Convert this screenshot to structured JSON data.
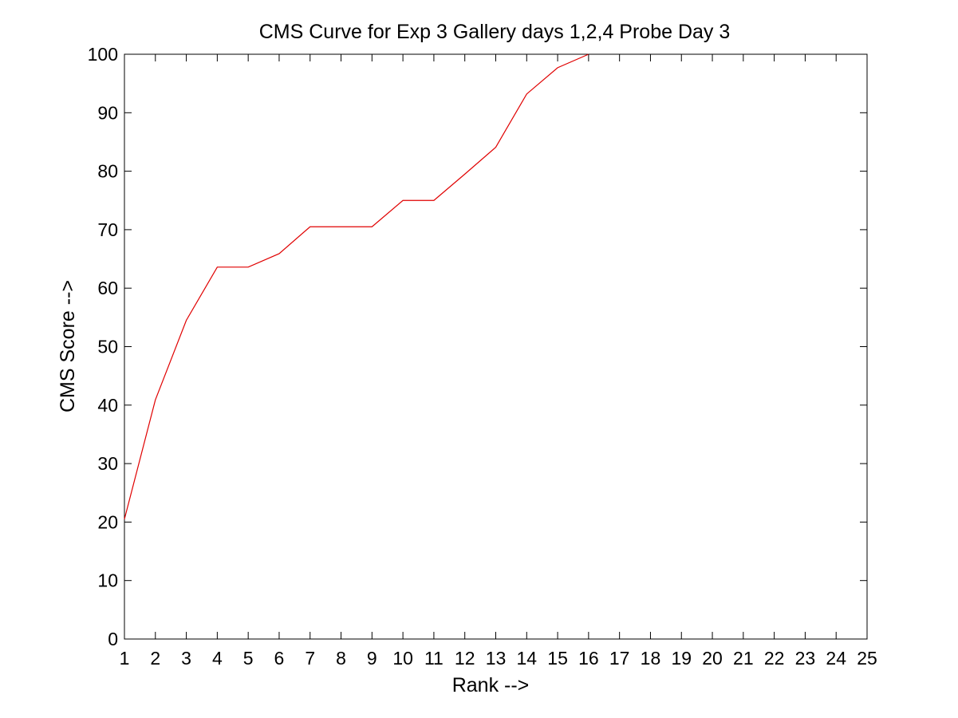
{
  "chart_data": {
    "type": "line",
    "title": "CMS Curve for Exp 3 Gallery days 1,2,4 Probe Day 3",
    "xlabel": "Rank -->",
    "ylabel": "CMS Score -->",
    "xlim": [
      1,
      25
    ],
    "ylim": [
      0,
      100
    ],
    "x_ticks": [
      1,
      2,
      3,
      4,
      5,
      6,
      7,
      8,
      9,
      10,
      11,
      12,
      13,
      14,
      15,
      16,
      17,
      18,
      19,
      20,
      21,
      22,
      23,
      24,
      25
    ],
    "y_ticks": [
      0,
      10,
      20,
      30,
      40,
      50,
      60,
      70,
      80,
      90,
      100
    ],
    "grid": false,
    "legend": "none",
    "series": [
      {
        "color": "#e00000",
        "x": [
          1,
          2,
          3,
          4,
          5,
          6,
          7,
          8,
          9,
          10,
          11,
          12,
          13,
          14,
          15,
          16
        ],
        "y": [
          20.5,
          40.9,
          54.5,
          63.6,
          63.6,
          65.9,
          70.5,
          70.5,
          70.5,
          75.0,
          75.0,
          79.5,
          84.1,
          93.2,
          97.7,
          100.0
        ]
      }
    ]
  }
}
